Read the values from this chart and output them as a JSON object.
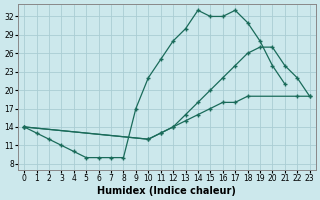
{
  "xlabel": "Humidex (Indice chaleur)",
  "background_color": "#cce8ec",
  "grid_color": "#aacdd4",
  "line_color": "#1a6b5a",
  "xlim": [
    -0.5,
    23.5
  ],
  "ylim": [
    7,
    34
  ],
  "yticks": [
    8,
    11,
    14,
    17,
    20,
    23,
    26,
    29,
    32
  ],
  "xticks": [
    0,
    1,
    2,
    3,
    4,
    5,
    6,
    7,
    8,
    9,
    10,
    11,
    12,
    13,
    14,
    15,
    16,
    17,
    18,
    19,
    20,
    21,
    22,
    23
  ],
  "line1_x": [
    0,
    1,
    2,
    3,
    4,
    5,
    6,
    7,
    8,
    9,
    10,
    11,
    12,
    13,
    14,
    15,
    16,
    17,
    18,
    19,
    20,
    21
  ],
  "line1_y": [
    14,
    13,
    12,
    11,
    10,
    9,
    9,
    9,
    9,
    17,
    22,
    25,
    28,
    30,
    33,
    32,
    32,
    33,
    31,
    28,
    24,
    21
  ],
  "line2_x": [
    0,
    10,
    11,
    12,
    13,
    14,
    15,
    16,
    17,
    18,
    22,
    23
  ],
  "line2_y": [
    14,
    12,
    13,
    14,
    15,
    16,
    17,
    18,
    18,
    19,
    19,
    19
  ],
  "line3_x": [
    0,
    10,
    11,
    12,
    13,
    14,
    15,
    16,
    17,
    18,
    19,
    20,
    21,
    22,
    23
  ],
  "line3_y": [
    14,
    12,
    13,
    14,
    16,
    18,
    20,
    22,
    24,
    26,
    27,
    27,
    24,
    22,
    19
  ]
}
